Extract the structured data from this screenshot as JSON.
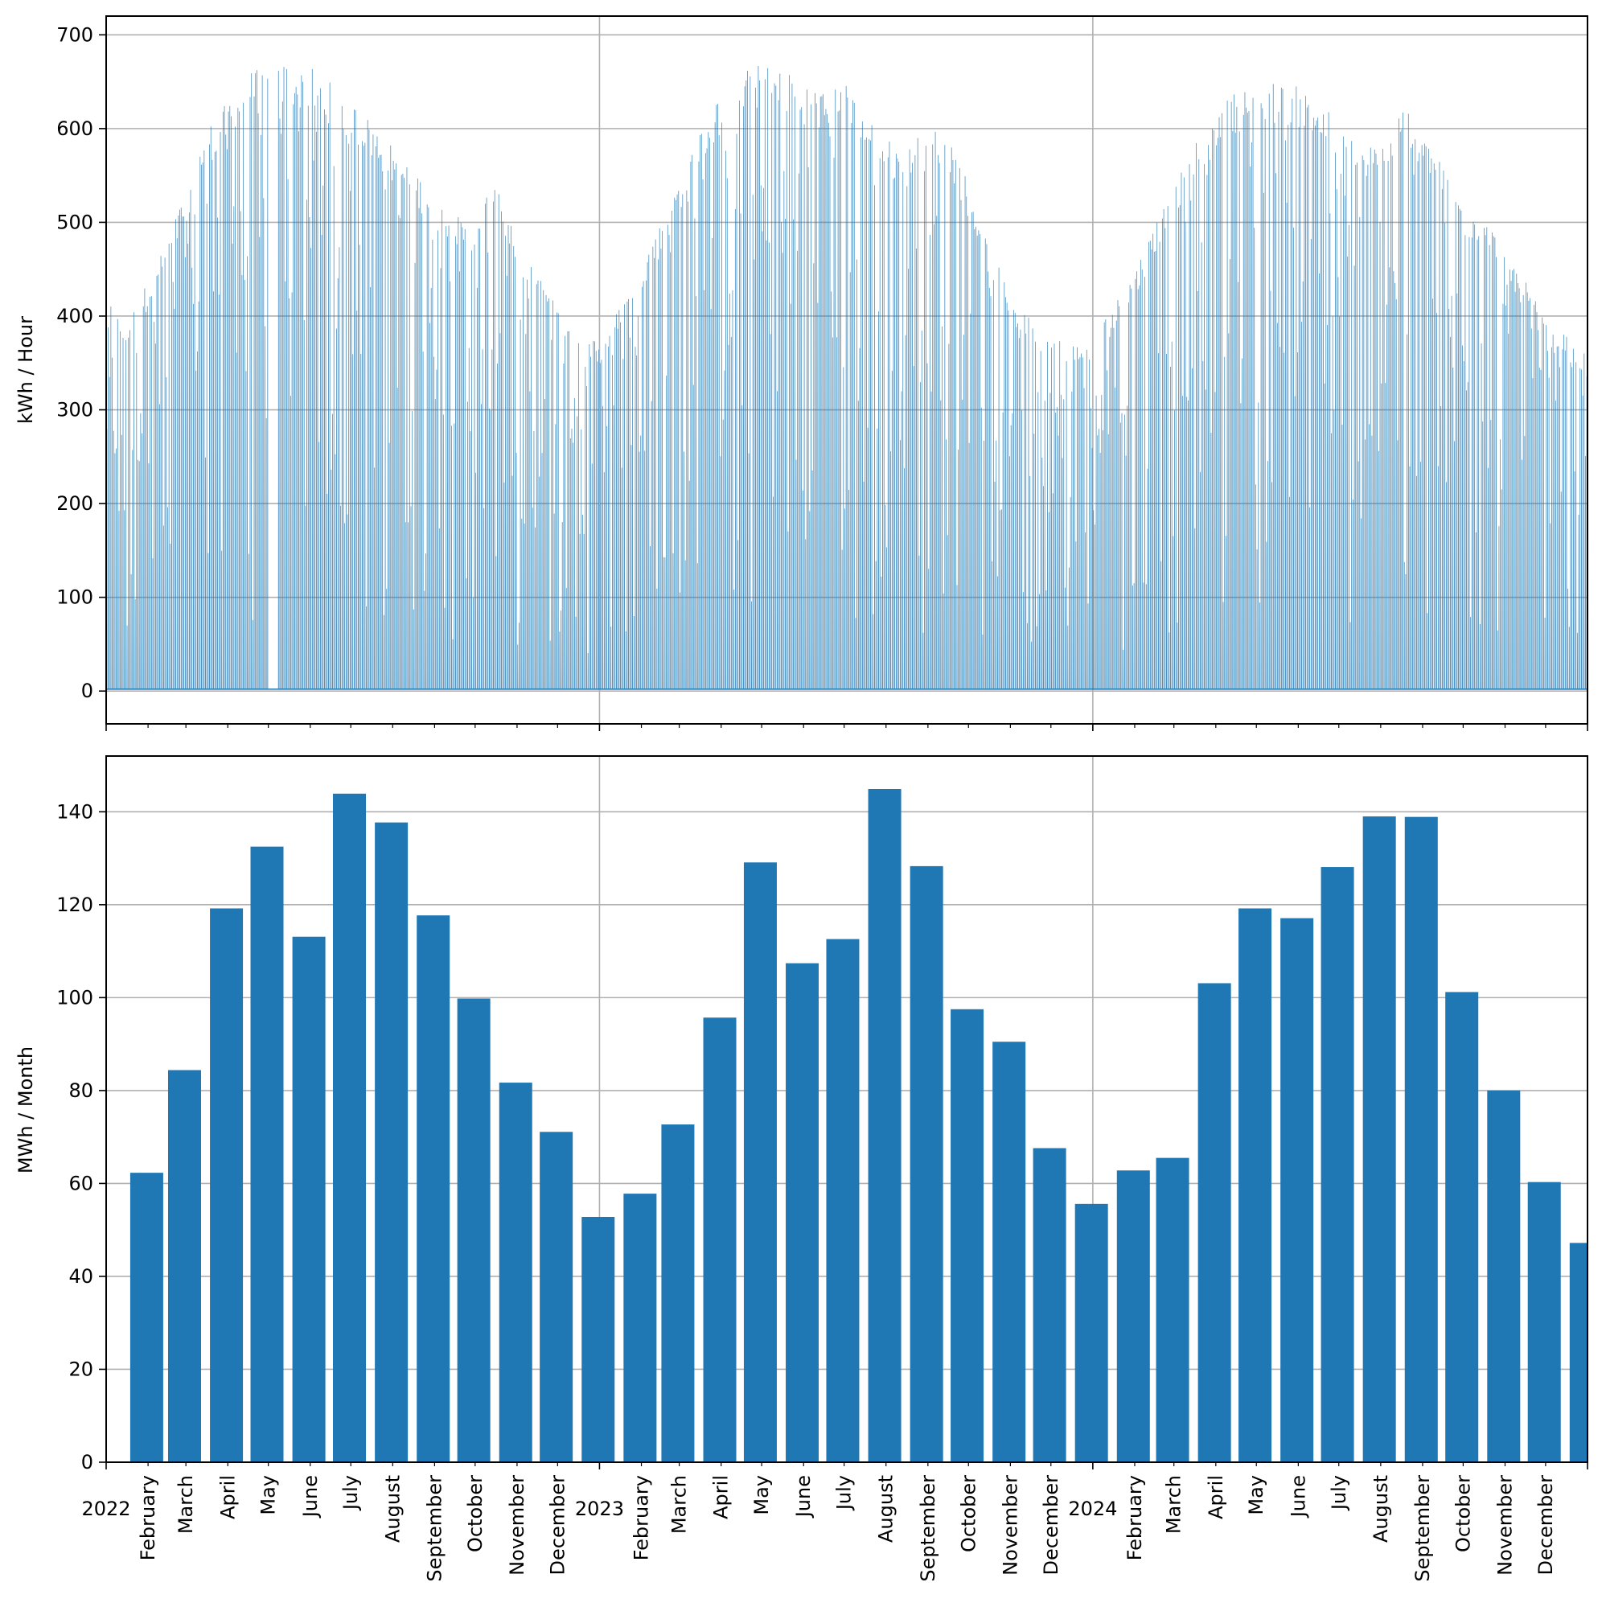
{
  "chart_data": [
    {
      "type": "area",
      "ylabel": "kWh / Hour",
      "xlabel": "",
      "ylim": [
        -35,
        720
      ],
      "yticks": [
        0,
        100,
        200,
        300,
        400,
        500,
        600,
        700
      ],
      "x_range": [
        "2022-01-01",
        "2025-01-01"
      ],
      "grid": true,
      "color": "#1f77b4",
      "series": [
        {
          "resolution": "hourly",
          "daily_peak_envelope": {
            "x": [
              "2022-01-01",
              "2022-01-15",
              "2022-02-01",
              "2022-02-15",
              "2022-03-01",
              "2022-03-15",
              "2022-04-01",
              "2022-04-15",
              "2022-05-01",
              "2022-05-15",
              "2022-06-01",
              "2022-06-15",
              "2022-07-01",
              "2022-07-15",
              "2022-08-01",
              "2022-08-15",
              "2022-09-01",
              "2022-09-15",
              "2022-10-01",
              "2022-10-15",
              "2022-11-01",
              "2022-11-15",
              "2022-12-01",
              "2022-12-15",
              "2023-01-01",
              "2023-01-15",
              "2023-02-01",
              "2023-02-15",
              "2023-03-01",
              "2023-03-15",
              "2023-04-01",
              "2023-04-15",
              "2023-05-01",
              "2023-05-15",
              "2023-06-01",
              "2023-06-15",
              "2023-07-01",
              "2023-07-15",
              "2023-08-01",
              "2023-08-15",
              "2023-09-01",
              "2023-09-15",
              "2023-10-01",
              "2023-10-15",
              "2023-11-01",
              "2023-11-15",
              "2023-12-01",
              "2023-12-15",
              "2024-01-01",
              "2024-01-15",
              "2024-02-01",
              "2024-02-15",
              "2024-03-01",
              "2024-03-15",
              "2024-04-01",
              "2024-04-15",
              "2024-05-01",
              "2024-05-15",
              "2024-06-01",
              "2024-06-15",
              "2024-07-01",
              "2024-07-15",
              "2024-08-01",
              "2024-08-15",
              "2024-09-01",
              "2024-09-15",
              "2024-10-01",
              "2024-10-15",
              "2024-11-01",
              "2024-11-15",
              "2024-12-01",
              "2024-12-15",
              "2025-01-01"
            ],
            "y": [
              420,
              390,
              440,
              480,
              540,
              600,
              630,
              660,
              670,
              670,
              665,
              650,
              630,
              610,
              580,
              560,
              530,
              510,
              490,
              560,
              470,
              450,
              420,
              400,
              370,
              410,
              460,
              500,
              550,
              600,
              640,
              660,
              670,
              665,
              650,
              640,
              660,
              620,
              590,
              575,
              610,
              600,
              540,
              480,
              420,
              400,
              380,
              370,
              380,
              410,
              450,
              500,
              540,
              580,
              620,
              640,
              650,
              650,
              645,
              630,
              610,
              590,
              580,
              630,
              590,
              570,
              520,
              510,
              470,
              440,
              400,
              380,
              360
            ]
          },
          "gaps": [
            [
              "2022-05-01",
              "2022-05-08"
            ]
          ]
        }
      ]
    },
    {
      "type": "bar",
      "ylabel": "MWh / Month",
      "xlabel": "",
      "ylim": [
        0,
        152
      ],
      "yticks": [
        0,
        20,
        40,
        60,
        80,
        100,
        120,
        140
      ],
      "grid": true,
      "color": "#1f77b4",
      "year_labels": [
        "2022",
        "2023",
        "2024"
      ],
      "categories": [
        "2022",
        "February",
        "March",
        "April",
        "May",
        "June",
        "July",
        "August",
        "September",
        "October",
        "November",
        "December",
        "2023",
        "February",
        "March",
        "April",
        "May",
        "June",
        "July",
        "August",
        "September",
        "October",
        "November",
        "December",
        "2024",
        "February",
        "March",
        "April",
        "May",
        "June",
        "July",
        "August",
        "September",
        "October",
        "November",
        "December"
      ],
      "values": [
        62.3,
        84.4,
        119.2,
        132.5,
        113.1,
        143.9,
        137.7,
        117.7,
        99.8,
        81.7,
        71.1,
        52.8,
        57.8,
        72.7,
        95.7,
        129.1,
        107.4,
        112.6,
        144.9,
        128.3,
        97.5,
        90.5,
        67.6,
        55.6,
        62.8,
        65.5,
        103.1,
        119.2,
        117.1,
        128.1,
        139.0,
        138.9,
        101.2,
        80.0,
        60.3,
        47.2
      ]
    }
  ]
}
